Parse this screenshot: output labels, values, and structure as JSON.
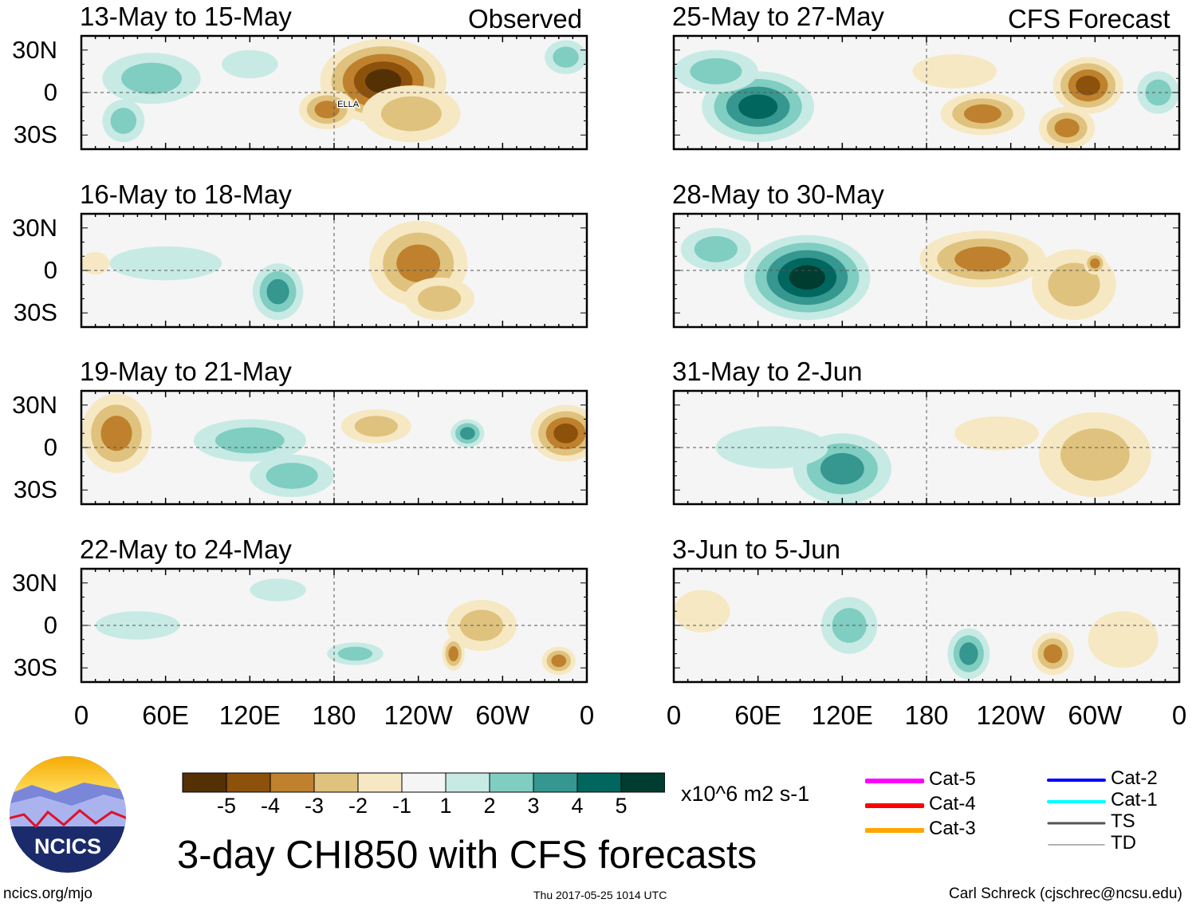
{
  "colors": [
    "#543005",
    "#8c510a",
    "#bf812d",
    "#dfc27d",
    "#f6e8c3",
    "#f5f5f5",
    "#c7eae5",
    "#80cdc1",
    "#35978f",
    "#01665e",
    "#003c30"
  ],
  "column_labels": {
    "left": "Observed",
    "right": "CFS Forecast"
  },
  "lat_ticks": [
    "30N",
    "0",
    "30S"
  ],
  "lon_ticks": [
    "0",
    "60E",
    "120E",
    "180",
    "120W",
    "60W",
    "0"
  ],
  "panels": [
    {
      "title": "13-May to 15-May",
      "col": 0,
      "row": 0,
      "storm_label": "ELLA",
      "storm": {
        "lon": 190,
        "lat": -10
      },
      "anomalies": [
        {
          "lon": 215,
          "lat": 8,
          "rx": 45,
          "ry": 30,
          "v": -5
        },
        {
          "lon": 235,
          "lat": -15,
          "rx": 35,
          "ry": 20,
          "v": -2
        },
        {
          "lon": 175,
          "lat": -12,
          "rx": 20,
          "ry": 14,
          "v": -3
        },
        {
          "lon": 50,
          "lat": 10,
          "rx": 35,
          "ry": 18,
          "v": 2
        },
        {
          "lon": 30,
          "lat": -20,
          "rx": 15,
          "ry": 15,
          "v": 2
        },
        {
          "lon": 345,
          "lat": 25,
          "rx": 15,
          "ry": 12,
          "v": 2
        },
        {
          "lon": 120,
          "lat": 20,
          "rx": 20,
          "ry": 10,
          "v": 1
        }
      ]
    },
    {
      "title": "16-May to 18-May",
      "col": 0,
      "row": 1,
      "anomalies": [
        {
          "lon": 240,
          "lat": 5,
          "rx": 35,
          "ry": 30,
          "v": -3
        },
        {
          "lon": 255,
          "lat": -20,
          "rx": 25,
          "ry": 15,
          "v": -2
        },
        {
          "lon": 140,
          "lat": -15,
          "rx": 18,
          "ry": 20,
          "v": 3
        },
        {
          "lon": 60,
          "lat": 5,
          "rx": 40,
          "ry": 12,
          "v": 1
        },
        {
          "lon": 10,
          "lat": 5,
          "rx": 10,
          "ry": 8,
          "v": -1
        }
      ]
    },
    {
      "title": "19-May to 21-May",
      "col": 0,
      "row": 2,
      "anomalies": [
        {
          "lon": 25,
          "lat": 10,
          "rx": 25,
          "ry": 28,
          "v": -3
        },
        {
          "lon": 345,
          "lat": 10,
          "rx": 25,
          "ry": 20,
          "v": -4
        },
        {
          "lon": 210,
          "lat": 15,
          "rx": 25,
          "ry": 12,
          "v": -2
        },
        {
          "lon": 120,
          "lat": 5,
          "rx": 40,
          "ry": 15,
          "v": 2
        },
        {
          "lon": 150,
          "lat": -20,
          "rx": 30,
          "ry": 15,
          "v": 2
        },
        {
          "lon": 275,
          "lat": 10,
          "rx": 12,
          "ry": 10,
          "v": 3
        }
      ]
    },
    {
      "title": "22-May to 24-May",
      "col": 0,
      "row": 3,
      "anomalies": [
        {
          "lon": 285,
          "lat": 0,
          "rx": 25,
          "ry": 18,
          "v": -2
        },
        {
          "lon": 265,
          "lat": -20,
          "rx": 8,
          "ry": 12,
          "v": -3
        },
        {
          "lon": 340,
          "lat": -25,
          "rx": 12,
          "ry": 10,
          "v": -3
        },
        {
          "lon": 195,
          "lat": -20,
          "rx": 20,
          "ry": 8,
          "v": 2
        },
        {
          "lon": 140,
          "lat": 25,
          "rx": 20,
          "ry": 8,
          "v": 1
        },
        {
          "lon": 40,
          "lat": 0,
          "rx": 30,
          "ry": 10,
          "v": 1
        }
      ]
    },
    {
      "title": "25-May to 27-May",
      "col": 1,
      "row": 0,
      "anomalies": [
        {
          "lon": 60,
          "lat": -10,
          "rx": 40,
          "ry": 25,
          "v": 4
        },
        {
          "lon": 30,
          "lat": 15,
          "rx": 30,
          "ry": 15,
          "v": 2
        },
        {
          "lon": 220,
          "lat": -15,
          "rx": 30,
          "ry": 15,
          "v": -3
        },
        {
          "lon": 295,
          "lat": 5,
          "rx": 25,
          "ry": 20,
          "v": -4
        },
        {
          "lon": 280,
          "lat": -25,
          "rx": 20,
          "ry": 15,
          "v": -3
        },
        {
          "lon": 345,
          "lat": 0,
          "rx": 15,
          "ry": 15,
          "v": 2
        },
        {
          "lon": 200,
          "lat": 15,
          "rx": 30,
          "ry": 12,
          "v": -1
        }
      ]
    },
    {
      "title": "28-May to 30-May",
      "col": 1,
      "row": 1,
      "anomalies": [
        {
          "lon": 95,
          "lat": -5,
          "rx": 45,
          "ry": 30,
          "v": 5
        },
        {
          "lon": 30,
          "lat": 15,
          "rx": 25,
          "ry": 15,
          "v": 2
        },
        {
          "lon": 220,
          "lat": 8,
          "rx": 45,
          "ry": 20,
          "v": -3
        },
        {
          "lon": 285,
          "lat": -10,
          "rx": 30,
          "ry": 25,
          "v": -2
        },
        {
          "lon": 300,
          "lat": 5,
          "rx": 8,
          "ry": 8,
          "v": -3
        }
      ]
    },
    {
      "title": "31-May to 2-Jun",
      "col": 1,
      "row": 2,
      "anomalies": [
        {
          "lon": 120,
          "lat": -15,
          "rx": 35,
          "ry": 25,
          "v": 3
        },
        {
          "lon": 70,
          "lat": 0,
          "rx": 40,
          "ry": 15,
          "v": 1
        },
        {
          "lon": 300,
          "lat": -5,
          "rx": 40,
          "ry": 30,
          "v": -2
        },
        {
          "lon": 230,
          "lat": 10,
          "rx": 30,
          "ry": 12,
          "v": -1
        }
      ]
    },
    {
      "title": "3-Jun to 5-Jun",
      "col": 1,
      "row": 3,
      "anomalies": [
        {
          "lon": 125,
          "lat": 0,
          "rx": 20,
          "ry": 20,
          "v": 2
        },
        {
          "lon": 210,
          "lat": -20,
          "rx": 15,
          "ry": 18,
          "v": 3
        },
        {
          "lon": 270,
          "lat": -20,
          "rx": 15,
          "ry": 15,
          "v": -3
        },
        {
          "lon": 320,
          "lat": -10,
          "rx": 25,
          "ry": 20,
          "v": -1
        },
        {
          "lon": 20,
          "lat": 10,
          "rx": 20,
          "ry": 15,
          "v": -1
        }
      ]
    }
  ],
  "colorbar": {
    "labels": [
      "-5",
      "-4",
      "-3",
      "-2",
      "-1",
      "1",
      "2",
      "3",
      "4",
      "5"
    ],
    "units": "x10^6 m2 s-1"
  },
  "legend": [
    {
      "label": "Cat-5",
      "color": "#ff00ff",
      "width": 6
    },
    {
      "label": "Cat-4",
      "color": "#ff0000",
      "width": 6
    },
    {
      "label": "Cat-3",
      "color": "#ffa500",
      "width": 6
    },
    {
      "label": "Cat-2",
      "color": "#0000ff",
      "width": 4
    },
    {
      "label": "Cat-1",
      "color": "#00ffff",
      "width": 4
    },
    {
      "label": "TS",
      "color": "#555555",
      "width": 3
    },
    {
      "label": "TD",
      "color": "#999999",
      "width": 1.5
    }
  ],
  "main_title": "3-day CHI850 with CFS forecasts",
  "logo_text": "NCICS",
  "footer": {
    "left": "ncics.org/mjo",
    "center": "Thu 2017-05-25 1014 UTC",
    "right": "Carl Schreck (cjschrec@ncsu.edu)"
  }
}
